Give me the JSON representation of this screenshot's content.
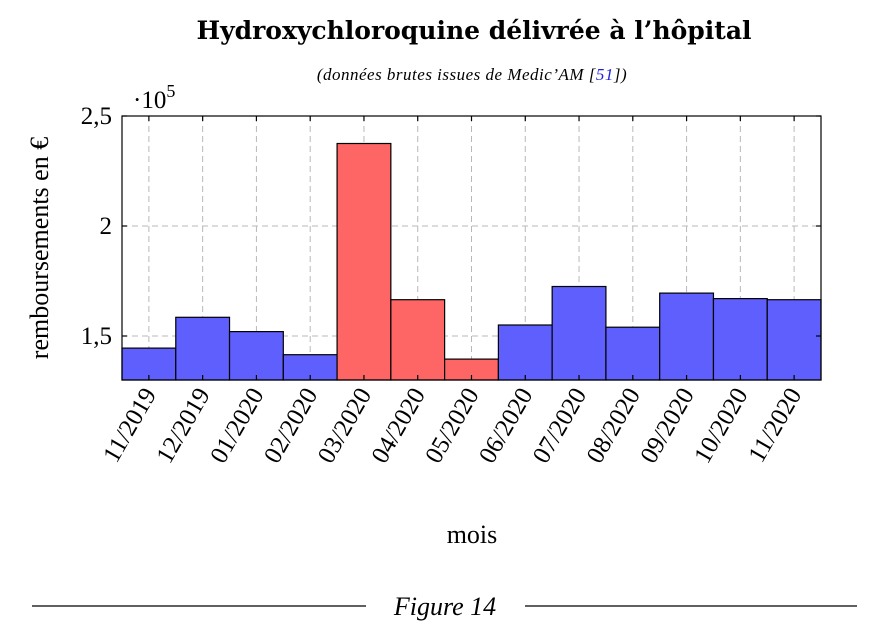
{
  "chart_data": {
    "type": "bar",
    "title": "Hydroxychloroquine délivrée à l’hôpital",
    "subtitle": "(données brutes issues de Medic’AM [51])",
    "subtitle_parts": {
      "before": "(données brutes issues de Medic’AM [",
      "ref": "51",
      "after": "])"
    },
    "xlabel": "mois",
    "ylabel": "remboursements en €",
    "y_scale_prefix": "·10",
    "y_scale_exponent": "5",
    "ylim": [
      1.3,
      2.5
    ],
    "yticks": [
      1.5,
      2,
      2.5
    ],
    "ytick_labels": [
      "1,5",
      "2",
      "2,5"
    ],
    "categories": [
      "11/2019",
      "12/2019",
      "01/2020",
      "02/2020",
      "03/2020",
      "04/2020",
      "05/2020",
      "06/2020",
      "07/2020",
      "08/2020",
      "09/2020",
      "10/2020",
      "11/2020"
    ],
    "values": [
      1.445,
      1.585,
      1.52,
      1.415,
      2.375,
      1.665,
      1.395,
      1.55,
      1.725,
      1.54,
      1.695,
      1.67,
      1.665
    ],
    "highlight_categories": [
      "03/2020",
      "04/2020",
      "05/2020"
    ],
    "colors": {
      "normal": "#5f5ffe",
      "highlight": "#fe6666",
      "grid": "#b8b8b8",
      "reference": "#2222dd"
    },
    "grid": true,
    "legend": "none"
  },
  "caption": "Figure 14"
}
